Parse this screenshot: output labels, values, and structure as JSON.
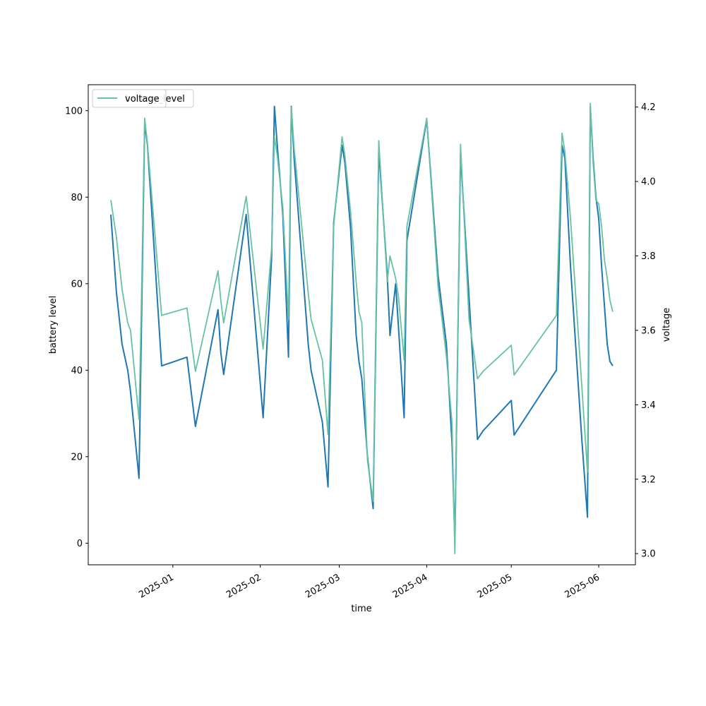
{
  "chart_data": {
    "type": "line",
    "xlabel": "time",
    "ylabel_left": "battery level",
    "ylabel_right": "voltage",
    "x_ticks": [
      {
        "date": "2025-01-01",
        "label": "2025-01"
      },
      {
        "date": "2025-02-01",
        "label": "2025-02"
      },
      {
        "date": "2025-03-01",
        "label": "2025-03"
      },
      {
        "date": "2025-04-01",
        "label": "2025-04"
      },
      {
        "date": "2025-05-01",
        "label": "2025-05"
      },
      {
        "date": "2025-06-01",
        "label": "2025-06"
      }
    ],
    "xlim": [
      "2024-12-02",
      "2025-06-14"
    ],
    "ylim_left": [
      -5,
      106
    ],
    "y_ticks_left": [
      "0",
      "20",
      "40",
      "60",
      "80",
      "100"
    ],
    "ylim_right": [
      2.97,
      4.26
    ],
    "y_ticks_right": [
      "3.0",
      "3.2",
      "3.4",
      "3.6",
      "3.8",
      "4.0",
      "4.2"
    ],
    "legend": {
      "placement": "upper-left",
      "entries": [
        "battery_level",
        "voltage"
      ]
    },
    "series": [
      {
        "name": "battery_level",
        "axis": "left",
        "color": "#1f77b4",
        "x": [
          "2024-12-10",
          "2024-12-12",
          "2024-12-14",
          "2024-12-16",
          "2024-12-17",
          "2024-12-20",
          "2024-12-21",
          "2024-12-22",
          "2024-12-23",
          "2024-12-28",
          "2025-01-06",
          "2025-01-09",
          "2025-01-17",
          "2025-01-18",
          "2025-01-19",
          "2025-01-27",
          "2025-02-02",
          "2025-02-05",
          "2025-02-06",
          "2025-02-07",
          "2025-02-09",
          "2025-02-11",
          "2025-02-12",
          "2025-02-13",
          "2025-02-18",
          "2025-02-19",
          "2025-02-23",
          "2025-02-25",
          "2025-02-27",
          "2025-03-02",
          "2025-03-03",
          "2025-03-05",
          "2025-03-07",
          "2025-03-08",
          "2025-03-09",
          "2025-03-11",
          "2025-03-13",
          "2025-03-15",
          "2025-03-18",
          "2025-03-19",
          "2025-03-21",
          "2025-03-22",
          "2025-03-24",
          "2025-03-25",
          "2025-04-01",
          "2025-04-05",
          "2025-04-08",
          "2025-04-10",
          "2025-04-11",
          "2025-04-13",
          "2025-04-16",
          "2025-04-19",
          "2025-04-21",
          "2025-05-01",
          "2025-05-02",
          "2025-05-17",
          "2025-05-19",
          "2025-05-20",
          "2025-05-22",
          "2025-05-26",
          "2025-05-28",
          "2025-05-29",
          "2025-05-30",
          "2025-05-31",
          "2025-06-01",
          "2025-06-02",
          "2025-06-03",
          "2025-06-04",
          "2025-06-05",
          "2025-06-06"
        ],
        "values": [
          76,
          58,
          46,
          40,
          35,
          15,
          56,
          97,
          92,
          41,
          43,
          27,
          54,
          44,
          39,
          76,
          29,
          66,
          101,
          92,
          76,
          43,
          101,
          89,
          46,
          40,
          28,
          13,
          74,
          92,
          88,
          73,
          48,
          42,
          38,
          20,
          8,
          91,
          62,
          48,
          60,
          50,
          29,
          70,
          98,
          62,
          46,
          23,
          0,
          90,
          57,
          24,
          26,
          33,
          25,
          40,
          92,
          89,
          64,
          24,
          6,
          101,
          89,
          80,
          75,
          64,
          55,
          46,
          42,
          41
        ]
      },
      {
        "name": "voltage",
        "axis": "right",
        "color": "#66c2a5",
        "x": [
          "2024-12-10",
          "2024-12-12",
          "2024-12-14",
          "2024-12-16",
          "2024-12-17",
          "2024-12-20",
          "2024-12-21",
          "2024-12-22",
          "2024-12-23",
          "2024-12-28",
          "2025-01-06",
          "2025-01-09",
          "2025-01-17",
          "2025-01-18",
          "2025-01-19",
          "2025-01-27",
          "2025-02-02",
          "2025-02-05",
          "2025-02-06",
          "2025-02-07",
          "2025-02-09",
          "2025-02-11",
          "2025-02-12",
          "2025-02-13",
          "2025-02-18",
          "2025-02-19",
          "2025-02-23",
          "2025-02-25",
          "2025-02-27",
          "2025-03-02",
          "2025-03-03",
          "2025-03-05",
          "2025-03-07",
          "2025-03-08",
          "2025-03-09",
          "2025-03-11",
          "2025-03-13",
          "2025-03-15",
          "2025-03-18",
          "2025-03-19",
          "2025-03-21",
          "2025-03-22",
          "2025-03-24",
          "2025-03-25",
          "2025-04-01",
          "2025-04-05",
          "2025-04-08",
          "2025-04-10",
          "2025-04-11",
          "2025-04-13",
          "2025-04-16",
          "2025-04-19",
          "2025-04-21",
          "2025-05-01",
          "2025-05-02",
          "2025-05-17",
          "2025-05-19",
          "2025-05-20",
          "2025-05-22",
          "2025-05-26",
          "2025-05-28",
          "2025-05-29",
          "2025-05-30",
          "2025-05-31",
          "2025-06-01",
          "2025-06-02",
          "2025-06-03",
          "2025-06-04",
          "2025-06-05",
          "2025-06-06"
        ],
        "values": [
          3.95,
          3.85,
          3.71,
          3.62,
          3.6,
          3.36,
          3.74,
          4.17,
          4.1,
          3.64,
          3.66,
          3.49,
          3.76,
          3.68,
          3.62,
          3.96,
          3.55,
          3.82,
          4.12,
          4.07,
          3.93,
          3.63,
          4.2,
          4.09,
          3.7,
          3.63,
          3.52,
          3.32,
          3.88,
          4.12,
          4.07,
          3.92,
          3.73,
          3.65,
          3.62,
          3.25,
          3.14,
          4.11,
          3.73,
          3.8,
          3.74,
          3.69,
          3.52,
          3.88,
          4.17,
          3.72,
          3.53,
          3.35,
          3.0,
          4.1,
          3.63,
          3.47,
          3.49,
          3.56,
          3.48,
          3.64,
          4.13,
          4.08,
          3.9,
          3.45,
          3.22,
          4.21,
          4.05,
          3.95,
          3.94,
          3.88,
          3.79,
          3.74,
          3.68,
          3.65
        ]
      }
    ]
  }
}
